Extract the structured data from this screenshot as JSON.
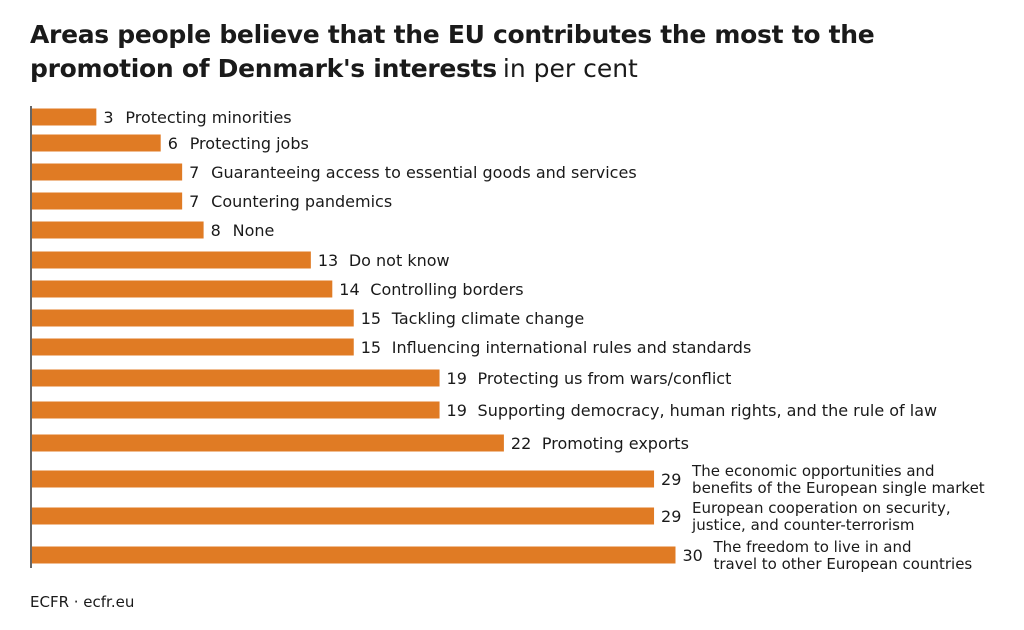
{
  "title": "Areas people believe that the EU contributes the most to the promotion of Denmark's interests",
  "title_unit": "in per cent",
  "source": "ECFR · ecfr.eu",
  "colors": {
    "bar": "#e07b24",
    "text": "#1a1a1a",
    "axis": "#333333"
  },
  "chart_data": {
    "type": "bar",
    "orientation": "horizontal",
    "categories": [
      "Protecting minorities",
      "Protecting jobs",
      "Guaranteeing access to essential goods and services",
      "Countering pandemics",
      "None",
      "Do not know",
      "Controlling borders",
      "Tackling climate change",
      "Influencing international rules and standards",
      "Protecting us from wars/conflict",
      "Supporting democracy, human rights, and the rule of law",
      "Promoting exports",
      "The economic opportunities and benefits of the European single market",
      "European cooperation on security, justice, and counter-terrorism",
      "The freedom to live in and travel to other European countries"
    ],
    "label_lines": [
      [
        "Protecting minorities"
      ],
      [
        "Protecting jobs"
      ],
      [
        "Guaranteeing access to essential goods and services"
      ],
      [
        "Countering pandemics"
      ],
      [
        "None"
      ],
      [
        "Do not know"
      ],
      [
        "Controlling borders"
      ],
      [
        "Tackling climate change"
      ],
      [
        "Influencing international rules and standards"
      ],
      [
        "Protecting us from wars/conflict"
      ],
      [
        "Supporting democracy, human rights, and the rule of law"
      ],
      [
        "Promoting exports"
      ],
      [
        "The economic opportunities and",
        "benefits of the European single market"
      ],
      [
        "European cooperation on security,",
        "justice, and counter-terrorism"
      ],
      [
        "The freedom to live in and",
        "travel to other European countries"
      ]
    ],
    "values": [
      3,
      6,
      7,
      7,
      8,
      13,
      14,
      15,
      15,
      19,
      19,
      22,
      29,
      29,
      30
    ],
    "xlim": [
      0,
      30
    ],
    "grid": false,
    "data_labels": true
  }
}
